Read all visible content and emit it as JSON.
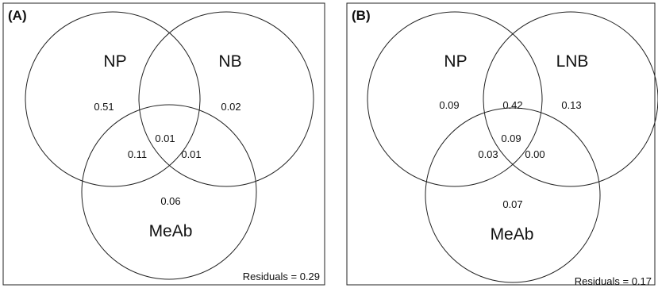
{
  "panels": [
    {
      "label": "(A)",
      "sets": [
        "NP",
        "NB",
        "MeAb"
      ],
      "regions": {
        "set1_only": "0.51",
        "set2_only": "0.02",
        "set3_only": "0.06",
        "set1_set2": "",
        "set1_set3": "0.11",
        "set2_set3": "0.01",
        "all": "0.01"
      },
      "residuals": "Residuals = 0.29"
    },
    {
      "label": "(B)",
      "sets": [
        "NP",
        "LNB",
        "MeAb"
      ],
      "regions": {
        "set1_only": "0.09",
        "set2_only": "0.13",
        "set3_only": "0.07",
        "set1_set2": "0.42",
        "set1_set3": "0.03",
        "set2_set3": "0.00",
        "all": "0.09"
      },
      "residuals": "Residuals = 0.17"
    }
  ]
}
